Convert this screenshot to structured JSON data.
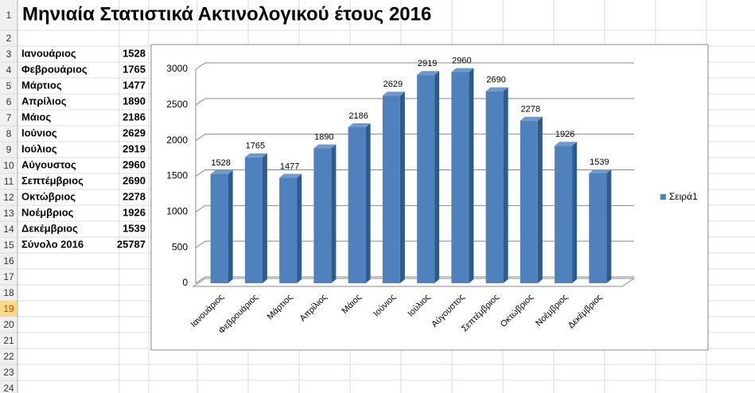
{
  "title": "Μηνιαία Στατιστικά Ακτινολογικού έτους 2016",
  "row_numbers": [
    1,
    2,
    3,
    4,
    5,
    6,
    7,
    8,
    9,
    10,
    11,
    12,
    13,
    14,
    15,
    16,
    17,
    18,
    19,
    20,
    21,
    22,
    23,
    24
  ],
  "table": {
    "rows": [
      [
        "Ιανουάριος",
        1528
      ],
      [
        "Φεβρουάριος",
        1765
      ],
      [
        "Μάρτιος",
        1477
      ],
      [
        "Απρίλιος",
        1890
      ],
      [
        "Μάιος",
        2186
      ],
      [
        "Ιούνιος",
        2629
      ],
      [
        "Ιούλιος",
        2919
      ],
      [
        "Αύγουστος",
        2960
      ],
      [
        "Σεπτέμβριος",
        2690
      ],
      [
        "Οκτώβριος",
        2278
      ],
      [
        "Νοέμβριος",
        1926
      ],
      [
        "Δεκέμβριος",
        1539
      ],
      [
        "Σύνολο 2016",
        25787
      ]
    ]
  },
  "chart_data": {
    "type": "bar",
    "categories": [
      "Ιανουάριος",
      "Φεβρουάριος",
      "Μάρτιος",
      "Απρίλιος",
      "Μάιος",
      "Ιούνιος",
      "Ιούλιος",
      "Αύγουστος",
      "Σεπτέμβριος",
      "Οκτώβριος",
      "Νοέμβριος",
      "Δεκέμβριος"
    ],
    "series": [
      {
        "name": "Σειρά1",
        "color": "#4f81bd",
        "values": [
          1528,
          1765,
          1477,
          1890,
          2186,
          2629,
          2919,
          2960,
          2690,
          2278,
          1926,
          1539
        ]
      }
    ],
    "ylim": [
      0,
      3000
    ],
    "yticks": [
      0,
      500,
      1000,
      1500,
      2000,
      2500,
      3000
    ],
    "grid": true,
    "legend": "right"
  }
}
